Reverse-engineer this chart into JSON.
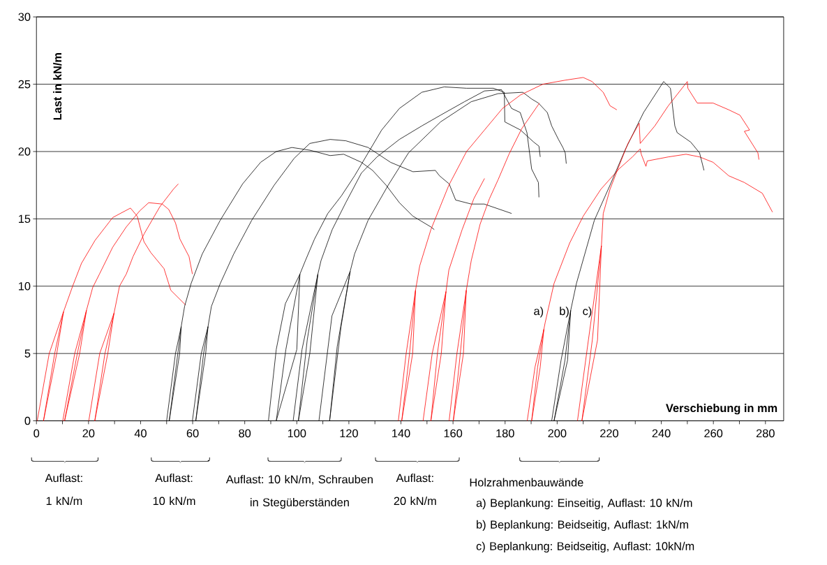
{
  "chart_data": {
    "type": "line",
    "xlabel": "Verschiebung in mm",
    "ylabel": "Last in kN/m",
    "xlim": [
      0,
      287
    ],
    "ylim": [
      0,
      30
    ],
    "xticks": [
      0,
      {
        "value": 10,
        "label": null
      },
      20,
      {
        "value": 30,
        "label": null
      },
      40,
      {
        "value": 50,
        "label": null
      },
      60,
      {
        "value": 70,
        "label": null
      },
      80,
      {
        "value": 90,
        "label": null
      },
      100,
      {
        "value": 110,
        "label": null
      },
      120,
      {
        "value": 130,
        "label": null
      },
      140,
      {
        "value": 150,
        "label": null
      },
      160,
      {
        "value": 170,
        "label": null
      },
      180,
      {
        "value": 190,
        "label": null
      },
      200,
      {
        "value": 210,
        "label": null
      },
      220,
      {
        "value": 230,
        "label": null
      },
      240,
      {
        "value": 250,
        "label": null
      },
      260,
      {
        "value": 270,
        "label": null
      },
      280
    ],
    "yticks": [
      0,
      5,
      10,
      15,
      20,
      25,
      30
    ],
    "grid": "y",
    "marker": "none",
    "line_style": "solid",
    "annotations": [
      "Auflast: 1 kN/m",
      "Auflast: 10 kN/m",
      "Auflast: 10 kN/m, Schrauben in Stegüberständen",
      "Auflast: 20 kN/m",
      "Holzrahmenbauwände",
      "a) Beplankung: Einseitig, Auflast: 10 kN/m",
      "b) Beplankung: Beidseitig, Auflast: 1kN/m",
      "c) Beplankung: Beidseitig, Auflast: 10kN/m",
      "a)",
      "b)",
      "c)"
    ],
    "series": [
      {
        "color": "#ff0000",
        "x": [
          0.3,
          4.9,
          10.4,
          7.8,
          2.7,
          7,
          10.4,
          13.9,
          17.3,
          22.5,
          29.3,
          36.1,
          38.7,
          41.3,
          43.9,
          49,
          51.6,
          57.3
        ],
        "values": [
          0,
          5,
          8.1,
          5,
          0,
          5,
          8.1,
          10,
          11.7,
          13.4,
          15.1,
          15.8,
          15.2,
          13.3,
          12.5,
          11.3,
          9.7,
          8.6
        ]
      },
      {
        "color": "#ff0000",
        "x": [
          10.1,
          14.7,
          19.2,
          16.6,
          10.8,
          15.7,
          19.2,
          21.6,
          24.2,
          29.3,
          34.5,
          39.7,
          43.1,
          48.3,
          50.8,
          53.4,
          55.1,
          58.6,
          59.9
        ],
        "values": [
          0,
          5,
          8.2,
          5,
          0,
          5,
          8.2,
          9.9,
          10.9,
          12.9,
          14.4,
          15.6,
          16.2,
          16.1,
          15.7,
          14.7,
          13.5,
          12.2,
          10.9
        ]
      },
      {
        "color": "#ff0000",
        "x": [
          20.1,
          24.3,
          29.8,
          27.4,
          22.4,
          26.3,
          29.8,
          31.9,
          34.5,
          37.1,
          41.4,
          47.4,
          52.6,
          54.5
        ],
        "values": [
          0,
          5,
          8,
          5,
          0,
          5,
          8,
          10,
          10.9,
          12.2,
          13.9,
          15.9,
          17.2,
          17.6
        ]
      },
      {
        "color": "#000000",
        "x": [
          50,
          53.4,
          55.6,
          55,
          51,
          54.3,
          55.6,
          56.9,
          59.4,
          63.7,
          70.6,
          79.2,
          86.1,
          92.1,
          98.1,
          105,
          112.8,
          118,
          124.8,
          129.1,
          134.3,
          139.4,
          144.6,
          151.5,
          152.8
        ],
        "values": [
          0,
          5,
          7,
          5,
          0,
          5,
          7,
          8.5,
          10.2,
          12.4,
          14.9,
          17.6,
          19.2,
          20,
          20.3,
          20.1,
          19.7,
          19.8,
          19.2,
          18.6,
          17.5,
          16.2,
          15.2,
          14.4,
          14.2
        ]
      },
      {
        "color": "#000000",
        "x": [
          59.9,
          63.3,
          65.9,
          65,
          61.2,
          64.2,
          65.9,
          67.2,
          70.6,
          75.8,
          82.7,
          91.3,
          99,
          105,
          112.8,
          118.8,
          127.4,
          136,
          144.6,
          153.2,
          154.8,
          158.5,
          161,
          167,
          172,
          182.5
        ],
        "values": [
          0,
          5,
          7,
          5,
          0,
          5,
          7,
          8.5,
          10.2,
          12.4,
          14.9,
          17.5,
          19.5,
          20.6,
          20.9,
          20.8,
          20.3,
          19.2,
          18.5,
          18.6,
          18.2,
          17.6,
          16.4,
          16.1,
          16.1,
          15.4
        ]
      },
      {
        "color": "#000000",
        "x": [
          89.1,
          92.1,
          95.6,
          101.2,
          100,
          92.1,
          95.8,
          101.2,
          103.3,
          106.8,
          111.9,
          117.1,
          122.2,
          127.4,
          132.6,
          139.4,
          148,
          156.6,
          165.2,
          175.5,
          179.7,
          179.9,
          185.9,
          191,
          193,
          193.5
        ],
        "values": [
          0,
          5.3,
          8.7,
          10.9,
          5.3,
          0,
          5.3,
          10.9,
          11.9,
          13.5,
          15.4,
          16.7,
          18.2,
          19.9,
          21.6,
          23.2,
          24.4,
          24.8,
          24.7,
          24.7,
          24.4,
          22.2,
          21.6,
          20.7,
          20.4,
          19.6
        ]
      },
      {
        "color": "#000000",
        "x": [
          98.6,
          102,
          108.1,
          105,
          100.6,
          104,
          108.1,
          109.3,
          113.6,
          118.8,
          124.8,
          130.8,
          139.4,
          148,
          155.2,
          164.4,
          172.1,
          178.6,
          182.5,
          185.8,
          188.4,
          190.2,
          192.8,
          193
        ],
        "values": [
          0,
          5.3,
          10.9,
          5,
          0,
          6,
          10.9,
          11.9,
          14.2,
          16.2,
          18.4,
          19.6,
          20.9,
          21.9,
          22.7,
          23.7,
          24.5,
          24.6,
          23.2,
          22.9,
          21.4,
          18.7,
          17.7,
          16.6
        ]
      },
      {
        "color": "#000000",
        "x": [
          108.5,
          113.5,
          120.5,
          117,
          112.6,
          115.5,
          120.5,
          122.2,
          127.4,
          135.1,
          142.9,
          155.2,
          167,
          177.3,
          186.8,
          190.2,
          192.8,
          196.2,
          197.9,
          200.5,
          202.2,
          203.1,
          203.5
        ],
        "values": [
          0,
          7.8,
          11.1,
          7,
          0,
          5.5,
          11.1,
          12.4,
          14.9,
          17.5,
          19.9,
          22.2,
          23.7,
          24.3,
          24.4,
          23.9,
          23.6,
          22.9,
          21.9,
          20.9,
          20.3,
          19.9,
          19.1
        ]
      },
      {
        "color": "#ff0000",
        "x": [
          139,
          142,
          145.6,
          144.5,
          140.3,
          143.3,
          145.6,
          147.2,
          151.5,
          158.4,
          165.2,
          172.1,
          179,
          185.9,
          194.5,
          203.1,
          210,
          213.4,
          217.7,
          220.3,
          222.9
        ],
        "values": [
          0,
          5,
          9.7,
          5,
          0,
          5,
          9.7,
          11.5,
          14.2,
          17.5,
          20,
          21.6,
          23.2,
          24.2,
          25,
          25.3,
          25.5,
          25.2,
          24.4,
          23.4,
          23.1
        ]
      },
      {
        "color": "#ff0000",
        "x": [
          148.5,
          152,
          157.3,
          155.5,
          151.5,
          154,
          157.3,
          158.4,
          163.5,
          168,
          172.1
        ],
        "values": [
          0,
          5,
          9.6,
          5,
          0,
          5,
          9.6,
          11.2,
          14.2,
          16.5,
          18
        ]
      },
      {
        "color": "#ff0000",
        "x": [
          158.5,
          161.5,
          165.1,
          164,
          160.1,
          162.8,
          165.1,
          167,
          170.4,
          174,
          177.3,
          181.5,
          186.4,
          193.2
        ],
        "values": [
          0,
          5,
          9.7,
          5,
          0,
          5,
          9.7,
          11.9,
          14.6,
          16.5,
          17.9,
          19.8,
          21.7,
          23.6
        ]
      },
      {
        "color": "#ff0000",
        "x": [
          188.5,
          191.5,
          194.9,
          193.5,
          190.2,
          192.5,
          194.9,
          195.4,
          198.8,
          204.8,
          210,
          216.8,
          223.7,
          228.9,
          231.9,
          232.3,
          234.1,
          234.6,
          242.7,
          249.5,
          254.7,
          259.9,
          265.9,
          271.9,
          278.8,
          282.7
        ],
        "values": [
          0,
          4,
          6.8,
          4,
          0,
          4,
          6.8,
          7.3,
          10.2,
          13.2,
          15.2,
          17.2,
          18.7,
          19.6,
          20.2,
          19.8,
          18.9,
          19.3,
          19.6,
          19.8,
          19.6,
          19.2,
          18.2,
          17.7,
          16.9,
          15.5
        ]
      },
      {
        "color": "#000000",
        "x": [
          197.9,
          201.5,
          205.2,
          204,
          198.8,
          203,
          205.2,
          207.4,
          214.3,
          220.3,
          226.3,
          233.2,
          240.9,
          243.5,
          245.2,
          246.1,
          251.3,
          254.7,
          256.4
        ],
        "values": [
          0,
          4.5,
          8.2,
          4.5,
          0,
          4.5,
          8.2,
          10.2,
          14.9,
          17.5,
          20.2,
          22.9,
          25.2,
          24.7,
          21.9,
          21.4,
          20.7,
          19.9,
          18.6
        ]
      },
      {
        "color": "#ff0000",
        "x": [
          207.8,
          212,
          217,
          215.5,
          209.5,
          213.5,
          217,
          217.7,
          220.3,
          223.7,
          227.2,
          231.5,
          231.9,
          237.5,
          242.7,
          250,
          250.2,
          253.8,
          259.9,
          265.9,
          270.2,
          273.9,
          271.9,
          277.1,
          277.5
        ],
        "values": [
          0,
          6,
          13,
          6,
          0,
          6,
          13,
          15.4,
          17.2,
          18.9,
          20.6,
          22.1,
          20.6,
          21.9,
          23.4,
          25.2,
          24.7,
          23.6,
          23.6,
          23.1,
          22.7,
          21.6,
          21.5,
          19.9,
          19.4
        ]
      }
    ]
  }
}
